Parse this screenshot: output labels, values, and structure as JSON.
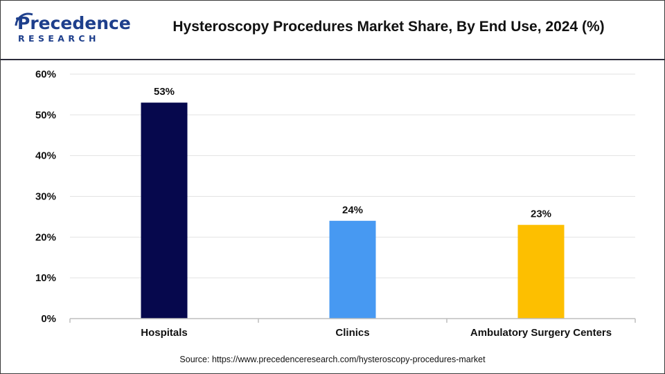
{
  "logo": {
    "main": "Precedence",
    "sub": "RESEARCH"
  },
  "title": "Hysteroscopy Procedures Market Share, By End Use, 2024 (%)",
  "source": "Source: https://www.precedenceresearch.com/hysteroscopy-procedures-market",
  "colors": {
    "hospitals": "#06084d",
    "clinics": "#4799f2",
    "ambulatory": "#fdbf00",
    "brand": "#1e3f8c"
  },
  "chart_data": {
    "type": "bar",
    "categories": [
      "Hospitals",
      "Clinics",
      "Ambulatory Surgery Centers"
    ],
    "values": [
      53,
      24,
      23
    ],
    "value_labels": [
      "53%",
      "24%",
      "23%"
    ],
    "colors": [
      "#06084d",
      "#4799f2",
      "#fdbf00"
    ],
    "y_ticks": [
      "0%",
      "10%",
      "20%",
      "30%",
      "40%",
      "50%",
      "60%"
    ],
    "ylim": [
      0,
      60
    ],
    "grid": true,
    "legend": "none"
  }
}
